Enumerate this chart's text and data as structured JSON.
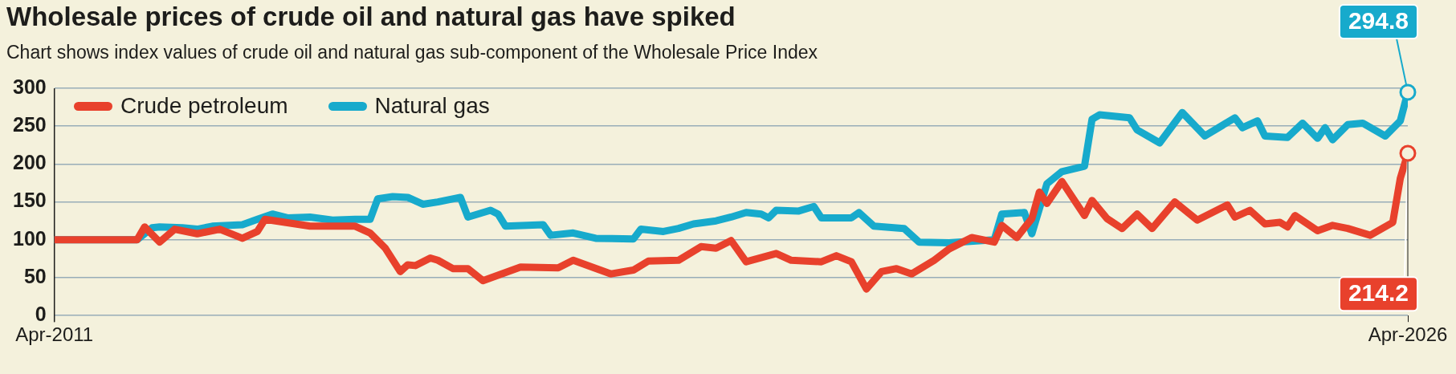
{
  "chart_data": {
    "type": "line",
    "title": "Wholesale prices of crude oil and natural gas have spiked",
    "subtitle": "Chart shows index values of crude oil and natural gas sub-component of the Wholesale Price Index",
    "xlim": [
      "2011-04",
      "2026-04"
    ],
    "xticks": [
      {
        "value": "2011-04",
        "label": "Apr-2011"
      },
      {
        "value": "2026-04",
        "label": "Apr-2026"
      }
    ],
    "ylim": [
      0,
      300
    ],
    "yticks": [
      0,
      50,
      100,
      150,
      200,
      250,
      300
    ],
    "grid": "y",
    "legend": "top left",
    "marker": "none",
    "line_style": "solid",
    "annotations": [
      {
        "text": "294.8",
        "x": "2026-04",
        "y": 294.8
      },
      {
        "text": "214.2",
        "x": "2026-04",
        "y": 214.2
      }
    ],
    "series": [
      {
        "name": "Crude petroleum",
        "color": "#e8412c",
        "x": [
          "2011-04",
          "2012-03",
          "2012-04",
          "2012-06",
          "2012-08",
          "2012-11",
          "2013-02",
          "2013-05",
          "2013-07",
          "2013-08",
          "2014-02",
          "2014-08",
          "2014-10",
          "2014-12",
          "2015-02",
          "2015-03",
          "2015-04",
          "2015-06",
          "2015-07",
          "2015-09",
          "2015-11",
          "2016-01",
          "2016-06",
          "2016-11",
          "2017-01",
          "2017-06",
          "2017-09",
          "2017-11",
          "2018-03",
          "2018-06",
          "2018-08",
          "2018-10",
          "2018-12",
          "2019-04",
          "2019-06",
          "2019-10",
          "2019-12",
          "2020-02",
          "2020-04",
          "2020-06",
          "2020-08",
          "2020-10",
          "2021-01",
          "2021-03",
          "2021-06",
          "2021-09",
          "2021-10",
          "2021-12",
          "2022-02",
          "2022-03",
          "2022-04",
          "2022-06",
          "2022-09",
          "2022-10",
          "2022-12",
          "2023-02",
          "2023-04",
          "2023-06",
          "2023-09",
          "2023-12",
          "2024-04",
          "2024-05",
          "2024-07",
          "2024-09",
          "2024-11",
          "2024-12",
          "2025-01",
          "2025-04",
          "2025-06",
          "2025-08",
          "2025-11",
          "2026-02",
          "2026-03",
          "2026-04"
        ],
        "values": [
          100,
          100,
          117,
          97,
          114,
          108,
          114,
          102,
          111,
          127,
          118,
          118,
          109,
          89,
          58,
          67,
          66,
          76,
          73,
          62,
          62,
          46,
          64,
          63,
          73,
          55,
          60,
          72,
          73,
          91,
          89,
          99,
          71,
          82,
          73,
          71,
          79,
          71,
          35,
          58,
          62,
          55,
          73,
          88,
          103,
          97,
          119,
          103,
          128,
          163,
          148,
          177,
          132,
          152,
          128,
          115,
          134,
          115,
          150,
          126,
          146,
          130,
          139,
          121,
          123,
          117,
          132,
          112,
          119,
          115,
          106,
          123,
          181,
          214.2
        ]
      },
      {
        "name": "Natural gas",
        "color": "#17aacc",
        "x": [
          "2011-04",
          "2012-03",
          "2012-05",
          "2012-06",
          "2012-09",
          "2012-11",
          "2013-01",
          "2013-05",
          "2013-07",
          "2013-09",
          "2013-11",
          "2014-02",
          "2014-05",
          "2014-08",
          "2014-10",
          "2014-11",
          "2015-01",
          "2015-03",
          "2015-05",
          "2015-07",
          "2015-10",
          "2015-11",
          "2016-02",
          "2016-03",
          "2016-04",
          "2016-09",
          "2016-10",
          "2017-01",
          "2017-04",
          "2017-09",
          "2017-10",
          "2018-01",
          "2018-03",
          "2018-05",
          "2018-08",
          "2018-10",
          "2018-12",
          "2019-02",
          "2019-03",
          "2019-04",
          "2019-07",
          "2019-09",
          "2019-10",
          "2020-02",
          "2020-03",
          "2020-05",
          "2020-09",
          "2020-11",
          "2021-03",
          "2021-09",
          "2021-10",
          "2022-01",
          "2022-02",
          "2022-04",
          "2022-06",
          "2022-09",
          "2022-10",
          "2022-11",
          "2023-03",
          "2023-04",
          "2023-07",
          "2023-10",
          "2024-01",
          "2024-05",
          "2024-06",
          "2024-08",
          "2024-09",
          "2024-12",
          "2025-02",
          "2025-04",
          "2025-05",
          "2025-06",
          "2025-08",
          "2025-10",
          "2026-01",
          "2026-03",
          "2026-04"
        ],
        "values": [
          100,
          100,
          116,
          117,
          116,
          114,
          118,
          120,
          127,
          134,
          129,
          130,
          126,
          127,
          127,
          154,
          157,
          156,
          147,
          150,
          156,
          130,
          139,
          134,
          118,
          120,
          106,
          109,
          102,
          101,
          114,
          111,
          115,
          121,
          125,
          130,
          136,
          134,
          129,
          139,
          138,
          144,
          129,
          129,
          136,
          118,
          115,
          97,
          96,
          100,
          134,
          136,
          108,
          174,
          190,
          197,
          259,
          265,
          261,
          245,
          228,
          268,
          237,
          261,
          248,
          257,
          237,
          235,
          254,
          234,
          248,
          232,
          252,
          254,
          237,
          257,
          294.8
        ]
      }
    ]
  }
}
